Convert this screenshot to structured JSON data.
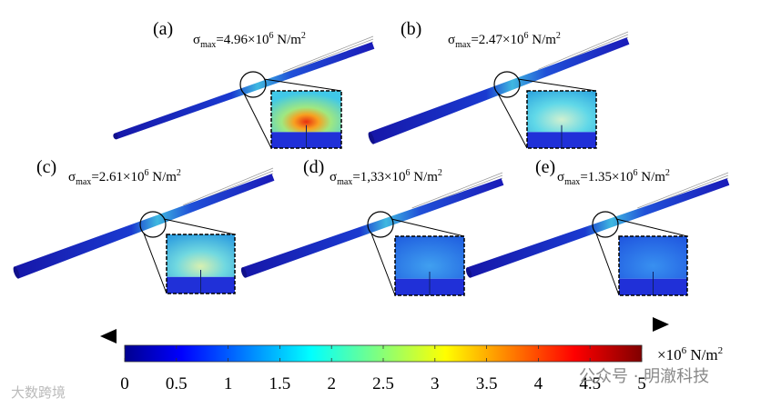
{
  "stress_label": {
    "symbol": "σ",
    "subscript": "max",
    "equals": "=",
    "times": "×10",
    "exponent": "6",
    "unit": " N/m",
    "unit_exponent": "2"
  },
  "panels": [
    {
      "label": "(a)",
      "value": "4.96"
    },
    {
      "label": "(b)",
      "value": "2.47"
    },
    {
      "label": "(c)",
      "value": "2.61"
    },
    {
      "label": "(d)",
      "value": "1,33"
    },
    {
      "label": "(e)",
      "value": "1.35"
    }
  ],
  "colorbar": {
    "range": [
      0,
      5
    ],
    "ticks": [
      0,
      0.5,
      1,
      1.5,
      2,
      2.5,
      3,
      3.5,
      4,
      4.5,
      5
    ],
    "unit": {
      "times": "×10",
      "exponent": "6",
      "unit": " N/m",
      "unit_exponent": "2"
    }
  },
  "watermarks": {
    "left": "大数跨境",
    "right": "公众号 · 明澈科技"
  }
}
